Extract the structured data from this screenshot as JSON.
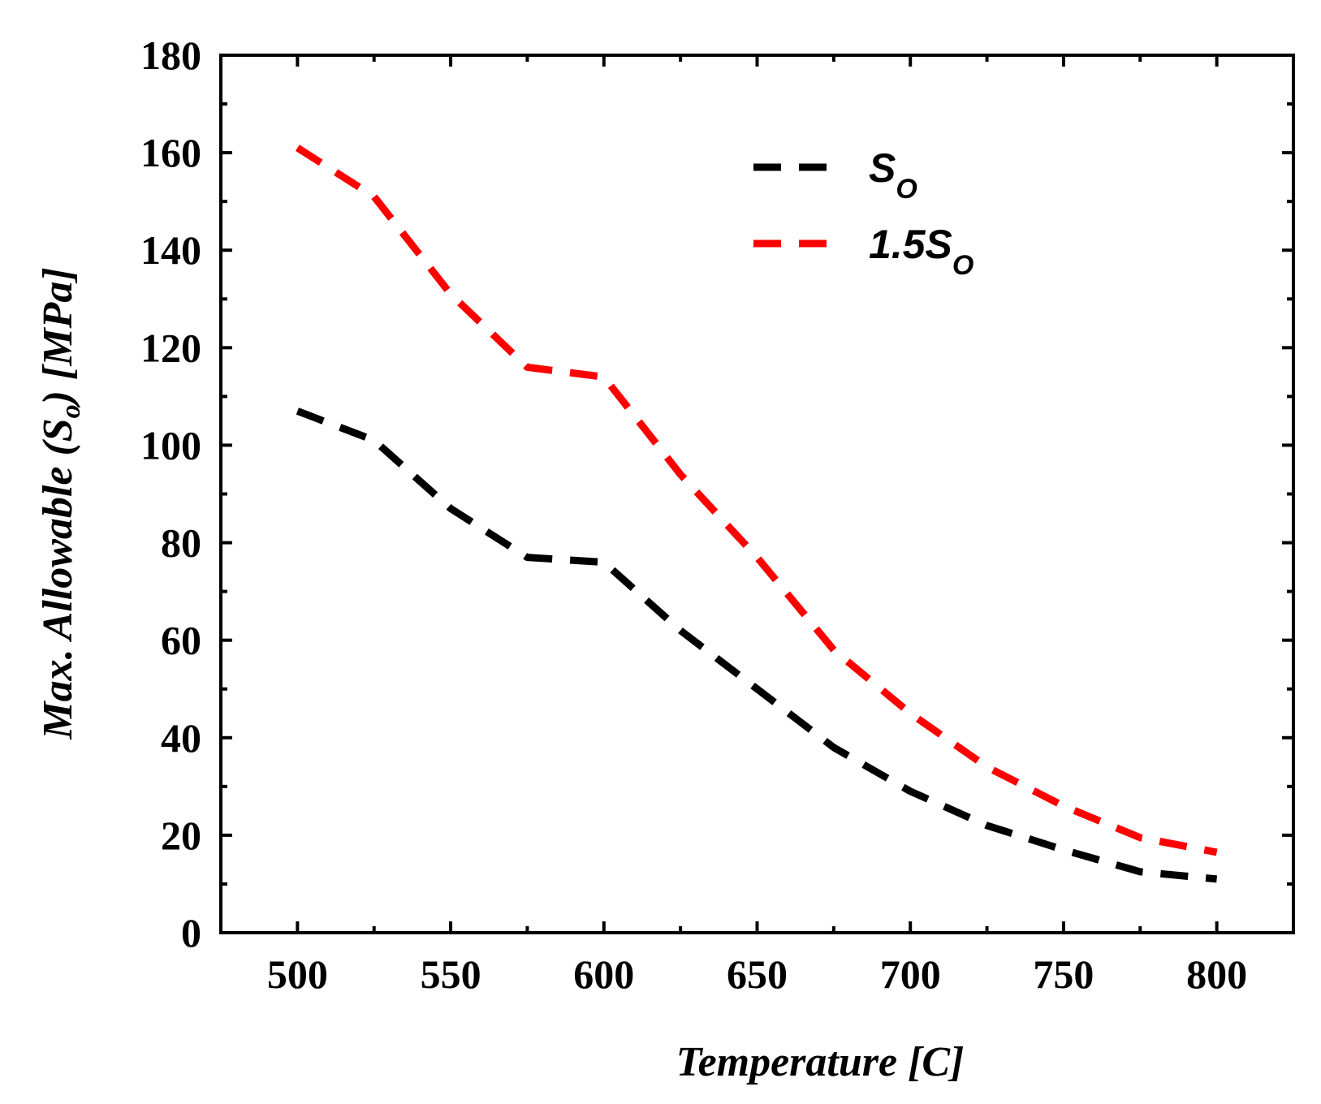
{
  "chart_data": {
    "type": "line",
    "title": "",
    "xlabel": "Temperature [C]",
    "ylabel": "Max. Allowable (S",
    "ylabel_sub": "o",
    "ylabel_tail": ") [MPa]",
    "xlim": [
      475,
      825
    ],
    "ylim": [
      0,
      180
    ],
    "xticks": [
      500,
      550,
      600,
      650,
      700,
      750,
      800
    ],
    "yticks": [
      0,
      20,
      40,
      60,
      80,
      100,
      120,
      140,
      160,
      180
    ],
    "legend_position": "top-center",
    "series": [
      {
        "name": "S",
        "name_sub": "O",
        "color": "#000000",
        "dash": "dashed",
        "x": [
          500,
          525,
          550,
          575,
          600,
          625,
          650,
          675,
          700,
          725,
          750,
          775,
          800
        ],
        "values": [
          107,
          101,
          87,
          77,
          76,
          62,
          50,
          38,
          29,
          22,
          17,
          12.5,
          11
        ]
      },
      {
        "name": "1.5S",
        "name_sub": "O",
        "color": "#ff0000",
        "dash": "dashed",
        "x": [
          500,
          525,
          550,
          575,
          600,
          625,
          650,
          675,
          700,
          725,
          750,
          775,
          800
        ],
        "values": [
          161,
          151,
          131,
          116,
          114,
          94,
          77,
          58,
          45,
          34,
          26,
          19.5,
          16.5
        ]
      }
    ]
  }
}
